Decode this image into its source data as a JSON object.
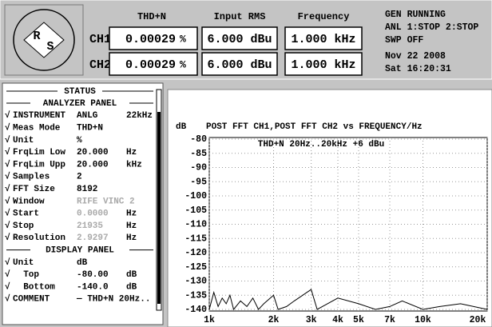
{
  "header": {
    "logo": [
      "R",
      "S"
    ],
    "columns": [
      "THD+N",
      "Input RMS",
      "Frequency"
    ],
    "channels": [
      {
        "name": "CH1",
        "cells": [
          [
            "0.00029",
            "%"
          ],
          [
            "6.000 dBu"
          ],
          [
            "1.000 kHz"
          ]
        ]
      },
      {
        "name": "CH2",
        "cells": [
          [
            "0.00029",
            "%"
          ],
          [
            "6.000 dBu"
          ],
          [
            "1.000 kHz"
          ]
        ]
      }
    ],
    "status": [
      "GEN RUNNING",
      "ANL 1:STOP 2:STOP",
      "SWP OFF",
      "Nov 22 2008",
      "Sat 16:20:31"
    ]
  },
  "status_panel": {
    "title": "STATUS",
    "rows": [
      {
        "section": "ANALYZER PANEL"
      },
      {
        "check": "√",
        "label": "INSTRUMENT",
        "value": "ANLG",
        "unit": "22kHz"
      },
      {
        "check": "√",
        "label": "Meas Mode",
        "value": "THD+N"
      },
      {
        "check": "√",
        "label": "Unit",
        "value": "%"
      },
      {
        "check": "√",
        "label": "FrqLim Low",
        "value": "20.000",
        "unit": "Hz"
      },
      {
        "check": "√",
        "label": "FrqLim Upp",
        "value": "20.000",
        "unit": "kHz"
      },
      {
        "check": "√",
        "label": "Samples",
        "value": "2"
      },
      {
        "check": "√",
        "label": "FFT Size",
        "value": "8192"
      },
      {
        "check": "√",
        "label": "Window",
        "value": "RIFE VINC 2",
        "disabled": true
      },
      {
        "check": "√",
        "label": "Start",
        "value": "0.0000",
        "unit": "Hz",
        "disabled": true
      },
      {
        "check": "√",
        "label": "Stop",
        "value": "21935",
        "unit": "Hz",
        "disabled": true
      },
      {
        "check": "√",
        "label": "Resolution",
        "value": "2.9297",
        "unit": "Hz",
        "disabled": true
      },
      {
        "section": "DISPLAY PANEL"
      },
      {
        "check": "√",
        "label": "Unit",
        "value": "dB"
      },
      {
        "check": "√",
        "label": "  Top",
        "value": "-80.00",
        "unit": "dB"
      },
      {
        "check": "√",
        "label": "  Bottom",
        "value": "-140.0",
        "unit": "dB"
      },
      {
        "check": "√",
        "label": "COMMENT",
        "value": "— THD+N 20Hz.."
      }
    ]
  },
  "graph": {
    "y_unit": "dB",
    "title": "POST FFT CH1,POST FFT CH2 vs   FREQUENCY/Hz",
    "comment": "THD+N 20Hz..20kHz +6 dBu",
    "log_x": true,
    "xlim": [
      1000,
      20000
    ],
    "ylim": [
      -140,
      -80
    ],
    "yticks": [
      -80,
      -85,
      -90,
      -95,
      -100,
      -105,
      -110,
      -115,
      -120,
      -125,
      -130,
      -135,
      -140
    ],
    "xticks": [
      {
        "value": 1000,
        "label": "1k"
      },
      {
        "value": 2000,
        "label": "2k"
      },
      {
        "value": 3000,
        "label": "3k"
      },
      {
        "value": 4000,
        "label": "4k"
      },
      {
        "value": 5000,
        "label": "5k"
      },
      {
        "value": 7000,
        "label": "7k"
      },
      {
        "value": 10000,
        "label": "10k"
      },
      {
        "value": 20000,
        "label": "20k"
      }
    ],
    "trace": {
      "x": [
        1000,
        1050,
        1100,
        1150,
        1200,
        1250,
        1300,
        1400,
        1500,
        1600,
        1700,
        1800,
        2000,
        2100,
        2300,
        2500,
        3000,
        3200,
        4000,
        5000,
        6000,
        7000,
        8000,
        10000,
        12000,
        15000,
        20000
      ],
      "y": [
        -140,
        -134,
        -139,
        -136,
        -138,
        -135,
        -140,
        -137,
        -139,
        -136,
        -140,
        -138,
        -135,
        -140,
        -139,
        -137,
        -133,
        -140,
        -136,
        -138,
        -140,
        -139,
        -137,
        -140,
        -139,
        -138,
        -140
      ]
    }
  }
}
